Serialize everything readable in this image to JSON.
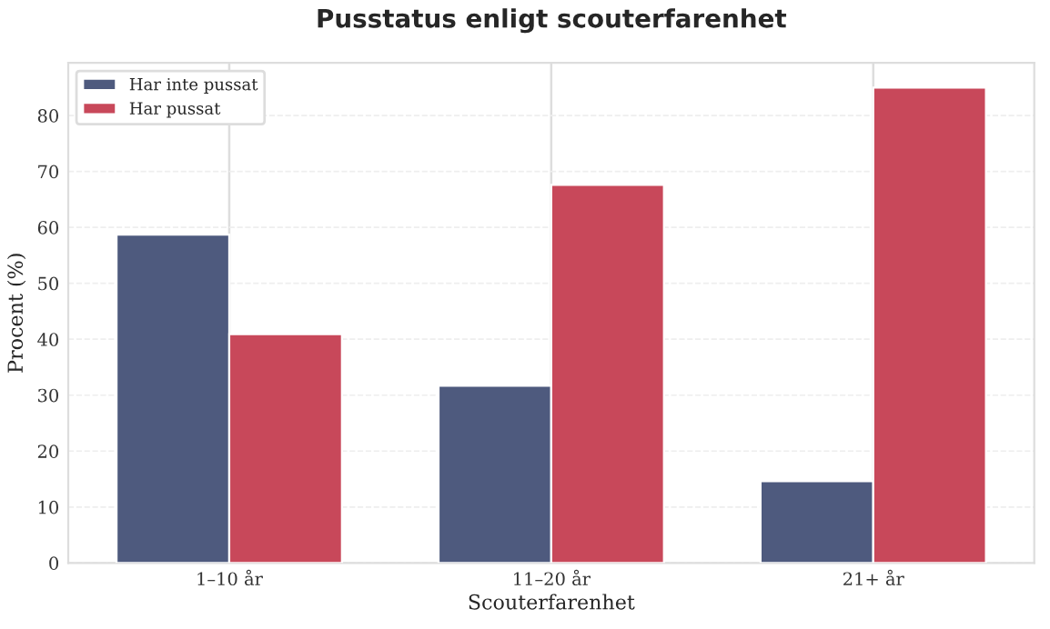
{
  "chart_data": {
    "type": "bar",
    "title": "Pusstatus enligt scouterfarenhet",
    "xlabel": "Scouterfarenhet",
    "ylabel": "Procent (%)",
    "categories": [
      "1–10 år",
      "11–20 år",
      "21+ år"
    ],
    "series": [
      {
        "name": "Har inte pussat",
        "color": "#4e5a7e",
        "values": [
          58.7,
          31.7,
          14.6
        ]
      },
      {
        "name": "Har pussat",
        "color": "#c8485a",
        "values": [
          40.9,
          67.6,
          85.0
        ]
      }
    ],
    "ylim": [
      0,
      89.4
    ],
    "yticks": [
      0,
      10,
      20,
      30,
      40,
      50,
      60,
      70,
      80
    ],
    "grid": true,
    "legend": "top left"
  }
}
